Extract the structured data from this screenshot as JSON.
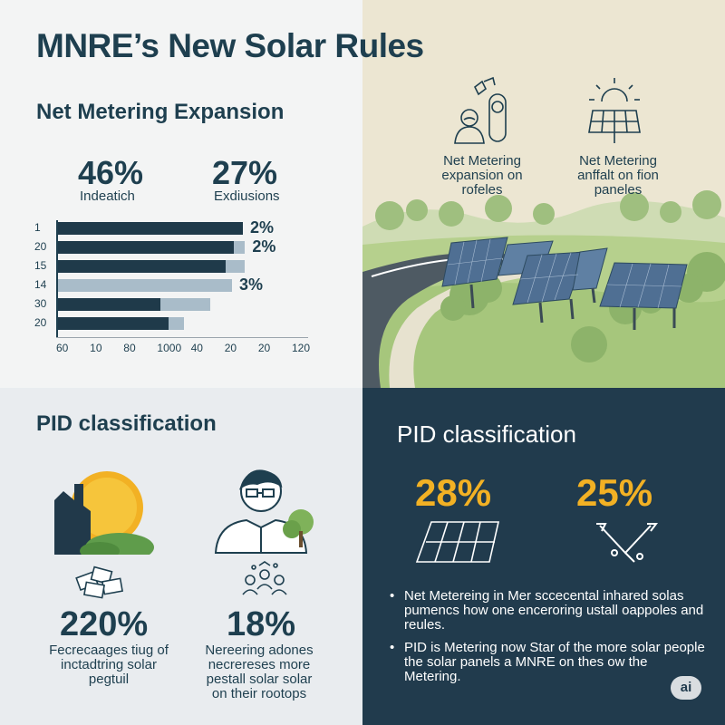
{
  "title": "MNRE’s New Solar Rules",
  "net_metering": {
    "heading": "Net Metering Expansion",
    "stat_left": {
      "value": "46%",
      "label": "Indeatich"
    },
    "stat_right": {
      "value": "27%",
      "label": "Exdiusions"
    }
  },
  "chart_data": {
    "type": "bar",
    "categories": [
      "1",
      "20",
      "15",
      "14",
      "30",
      "20"
    ],
    "series": [
      {
        "values": [
          0.85,
          0.81,
          0.77,
          0.0,
          0.47,
          0.51
        ]
      },
      {
        "values": [
          0.85,
          0.86,
          0.86,
          0.8,
          0.7,
          0.58
        ]
      }
    ],
    "value_labels": [
      "2%",
      "2%",
      "",
      "3%",
      "",
      ""
    ],
    "x_tick_labels": [
      "60",
      "10",
      "80",
      "1000",
      "40",
      "20",
      "20",
      "120"
    ],
    "colors": {
      "dark": "#1f3a4a",
      "light": "#a9bcc9"
    }
  },
  "top_right": {
    "caption_left": [
      "Net Metering",
      "expansion on",
      "rofeles"
    ],
    "caption_right": [
      "Net Metering",
      "anffalt on fion",
      "paneles"
    ]
  },
  "pid_light": {
    "heading": "PID classification",
    "stat_left": {
      "value": "220%",
      "caption": [
        "Fecrecaages tiug of",
        "inctadtring solar",
        "pegtuil"
      ]
    },
    "stat_right": {
      "value": "18%",
      "caption": [
        "Nereering adones",
        "necrereses more",
        "pestall solar solar",
        "on their rootops"
      ]
    }
  },
  "pid_dark": {
    "heading": "PID classification",
    "stat_left": "28%",
    "stat_right": "25%",
    "bullets": [
      "Net Metereing in Mer sccecental inhared solas pumencs how one enceroring ustall oappoles and reules.",
      "PID is Metering now Star of the more solar people the solar panels a MNRE on thes ow the Metering."
    ]
  },
  "badge": "ai",
  "colors": {
    "navy": "#213b4d",
    "gold": "#f2b124",
    "sky_beige": "#ece6d2",
    "grass": "#a8c77a"
  }
}
